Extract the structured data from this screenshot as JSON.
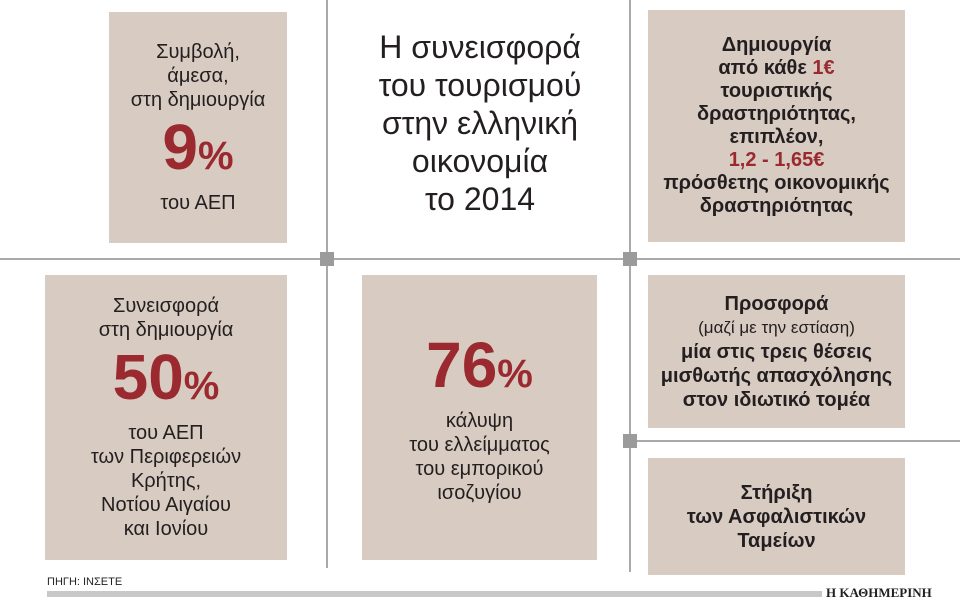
{
  "title": [
    "Η συνεισφορά",
    "του τουρισμού",
    "στην ελληνική",
    "οικονομία",
    "το 2014"
  ],
  "box_gdp": {
    "lines_top": [
      "Συμβολή,",
      "άμεσα,",
      "στη δημιουργία"
    ],
    "value": "9",
    "unit": "%",
    "lines_bottom": [
      "του ΑΕΠ"
    ]
  },
  "box_multiplier": {
    "line1": "Δημιουργία",
    "line2a": "από κάθε ",
    "line2b": "1€",
    "line3": "τουριστικής",
    "line4": "δραστηριότητας,",
    "line5": "επιπλέον,",
    "line6": "1,2 - 1,65€",
    "line7": "πρόσθετης οικονομικής",
    "line8": "δραστηριότητας"
  },
  "box_regions": {
    "lines_top": [
      "Συνεισφορά",
      "στη δημιουργία"
    ],
    "value": "50",
    "unit": "%",
    "lines_bottom": [
      "του ΑΕΠ",
      "των Περιφερειών",
      "Κρήτης,",
      "Νοτίου Αιγαίου",
      "και Ιονίου"
    ]
  },
  "box_trade": {
    "value": "76",
    "unit": "%",
    "lines_bottom": [
      "κάλυψη",
      "του ελλείμματος",
      "του εμπορικού",
      "ισοζυγίου"
    ]
  },
  "box_jobs": {
    "line1": "Προσφορά",
    "line2": "(μαζί με την εστίαση)",
    "line3": "μία στις τρεις θέσεις",
    "line4": "μισθωτής απασχόλησης",
    "line5": "στον ιδιωτικό τομέα"
  },
  "box_funds": {
    "lines": [
      "Στήριξη",
      "των Ασφαλιστικών",
      "Ταμείων"
    ]
  },
  "source": "ΠΗΓΗ: ΙΝΣΕΤΕ",
  "publisher": "Η ΚΑΘΗΜΕΡΙΝΗ",
  "colors": {
    "box": "#d8cbc1",
    "accent": "#9a2a2f"
  }
}
